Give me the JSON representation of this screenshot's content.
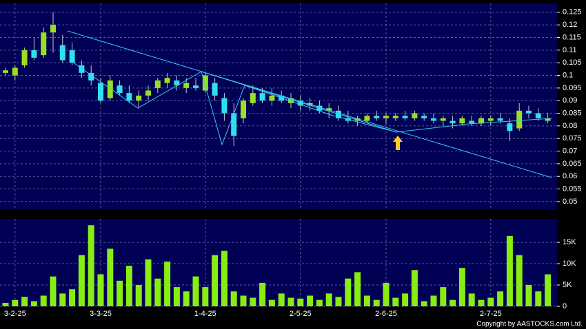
{
  "chart_data": [
    {
      "type": "candlestick",
      "ohlc": [
        [
          0.101,
          0.103,
          0.1,
          0.102
        ],
        [
          0.1,
          0.104,
          0.098,
          0.103
        ],
        [
          0.104,
          0.111,
          0.103,
          0.11
        ],
        [
          0.11,
          0.115,
          0.106,
          0.107
        ],
        [
          0.108,
          0.119,
          0.107,
          0.117
        ],
        [
          0.117,
          0.125,
          0.109,
          0.12
        ],
        [
          0.112,
          0.116,
          0.105,
          0.106
        ],
        [
          0.11,
          0.113,
          0.104,
          0.105
        ],
        [
          0.104,
          0.106,
          0.099,
          0.101
        ],
        [
          0.101,
          0.104,
          0.096,
          0.098
        ],
        [
          0.097,
          0.099,
          0.089,
          0.09
        ],
        [
          0.091,
          0.1,
          0.09,
          0.098
        ],
        [
          0.096,
          0.098,
          0.092,
          0.093
        ],
        [
          0.093,
          0.096,
          0.089,
          0.09
        ],
        [
          0.09,
          0.094,
          0.087,
          0.092
        ],
        [
          0.092,
          0.096,
          0.09,
          0.094
        ],
        [
          0.095,
          0.099,
          0.093,
          0.098
        ],
        [
          0.097,
          0.101,
          0.095,
          0.099
        ],
        [
          0.098,
          0.1,
          0.094,
          0.096
        ],
        [
          0.095,
          0.099,
          0.093,
          0.097
        ],
        [
          0.096,
          0.099,
          0.094,
          0.095
        ],
        [
          0.094,
          0.101,
          0.093,
          0.1
        ],
        [
          0.097,
          0.099,
          0.09,
          0.092
        ],
        [
          0.091,
          0.093,
          0.082,
          0.085
        ],
        [
          0.085,
          0.089,
          0.072,
          0.076
        ],
        [
          0.083,
          0.091,
          0.081,
          0.09
        ],
        [
          0.089,
          0.096,
          0.088,
          0.093
        ],
        [
          0.093,
          0.095,
          0.089,
          0.09
        ],
        [
          0.09,
          0.095,
          0.088,
          0.092
        ],
        [
          0.092,
          0.094,
          0.089,
          0.09
        ],
        [
          0.089,
          0.093,
          0.087,
          0.091
        ],
        [
          0.09,
          0.092,
          0.086,
          0.088
        ],
        [
          0.088,
          0.091,
          0.086,
          0.089
        ],
        [
          0.088,
          0.09,
          0.085,
          0.086
        ],
        [
          0.086,
          0.089,
          0.083,
          0.087
        ],
        [
          0.086,
          0.088,
          0.082,
          0.083
        ],
        [
          0.083,
          0.086,
          0.081,
          0.082
        ],
        [
          0.082,
          0.084,
          0.08,
          0.083
        ],
        [
          0.082,
          0.085,
          0.081,
          0.084
        ],
        [
          0.084,
          0.086,
          0.082,
          0.083
        ],
        [
          0.083,
          0.085,
          0.081,
          0.084
        ],
        [
          0.083,
          0.085,
          0.082,
          0.084
        ],
        [
          0.084,
          0.086,
          0.082,
          0.083
        ],
        [
          0.083,
          0.086,
          0.082,
          0.085
        ],
        [
          0.084,
          0.085,
          0.082,
          0.083
        ],
        [
          0.083,
          0.085,
          0.081,
          0.082
        ],
        [
          0.082,
          0.084,
          0.08,
          0.083
        ],
        [
          0.082,
          0.084,
          0.079,
          0.081
        ],
        [
          0.081,
          0.084,
          0.08,
          0.083
        ],
        [
          0.082,
          0.084,
          0.08,
          0.081
        ],
        [
          0.081,
          0.084,
          0.08,
          0.083
        ],
        [
          0.082,
          0.084,
          0.08,
          0.083
        ],
        [
          0.083,
          0.085,
          0.081,
          0.082
        ],
        [
          0.081,
          0.083,
          0.074,
          0.078
        ],
        [
          0.079,
          0.089,
          0.078,
          0.086
        ],
        [
          0.086,
          0.088,
          0.083,
          0.085
        ],
        [
          0.085,
          0.087,
          0.082,
          0.083
        ],
        [
          0.082,
          0.085,
          0.081,
          0.083
        ]
      ],
      "up_color": "#99e020",
      "down_color": "#2ee0f0",
      "ylim": [
        0.0467,
        0.1285
      ],
      "yticks": [
        0.05,
        0.055,
        0.06,
        0.065,
        0.07,
        0.075,
        0.08,
        0.085,
        0.09,
        0.095,
        0.1,
        0.105,
        0.11,
        0.115,
        0.12,
        0.125
      ],
      "grid": true
    },
    {
      "type": "bar",
      "categories": [
        null,
        "3-2-25",
        null,
        null,
        null,
        null,
        null,
        null,
        null,
        null,
        "3-3-25",
        null,
        null,
        null,
        null,
        null,
        null,
        null,
        null,
        null,
        null,
        "1-4-25",
        null,
        null,
        null,
        null,
        null,
        null,
        null,
        null,
        null,
        "2-5-25",
        null,
        null,
        null,
        null,
        null,
        null,
        null,
        null,
        "2-6-25",
        null,
        null,
        null,
        null,
        null,
        null,
        null,
        null,
        null,
        null,
        "2-7-25",
        null,
        null,
        null,
        null,
        null,
        null
      ],
      "values": [
        800,
        1500,
        2200,
        1200,
        2500,
        7000,
        3000,
        4000,
        12000,
        19000,
        7500,
        13500,
        6000,
        9500,
        5000,
        11000,
        6500,
        10500,
        4500,
        3500,
        7000,
        4500,
        12000,
        13000,
        3500,
        2500,
        2000,
        5500,
        1500,
        3000,
        2000,
        1800,
        2500,
        1500,
        3000,
        2200,
        6500,
        8000,
        2500,
        1500,
        5500,
        2000,
        3000,
        8500,
        1200,
        2500,
        4500,
        1500,
        9000,
        3000,
        1500,
        2000,
        3500,
        16500,
        12000,
        5000,
        3500,
        7500
      ],
      "color": "#88ee11",
      "ylim": [
        0,
        20500
      ],
      "yticks": [
        {
          "value": 0,
          "label": "0"
        },
        {
          "value": 5000,
          "label": "5K"
        },
        {
          "value": 10000,
          "label": "10K"
        },
        {
          "value": 15000,
          "label": "15K"
        }
      ],
      "grid": true
    }
  ],
  "footer": "Copyright by AASTOCKS.com Ltd."
}
